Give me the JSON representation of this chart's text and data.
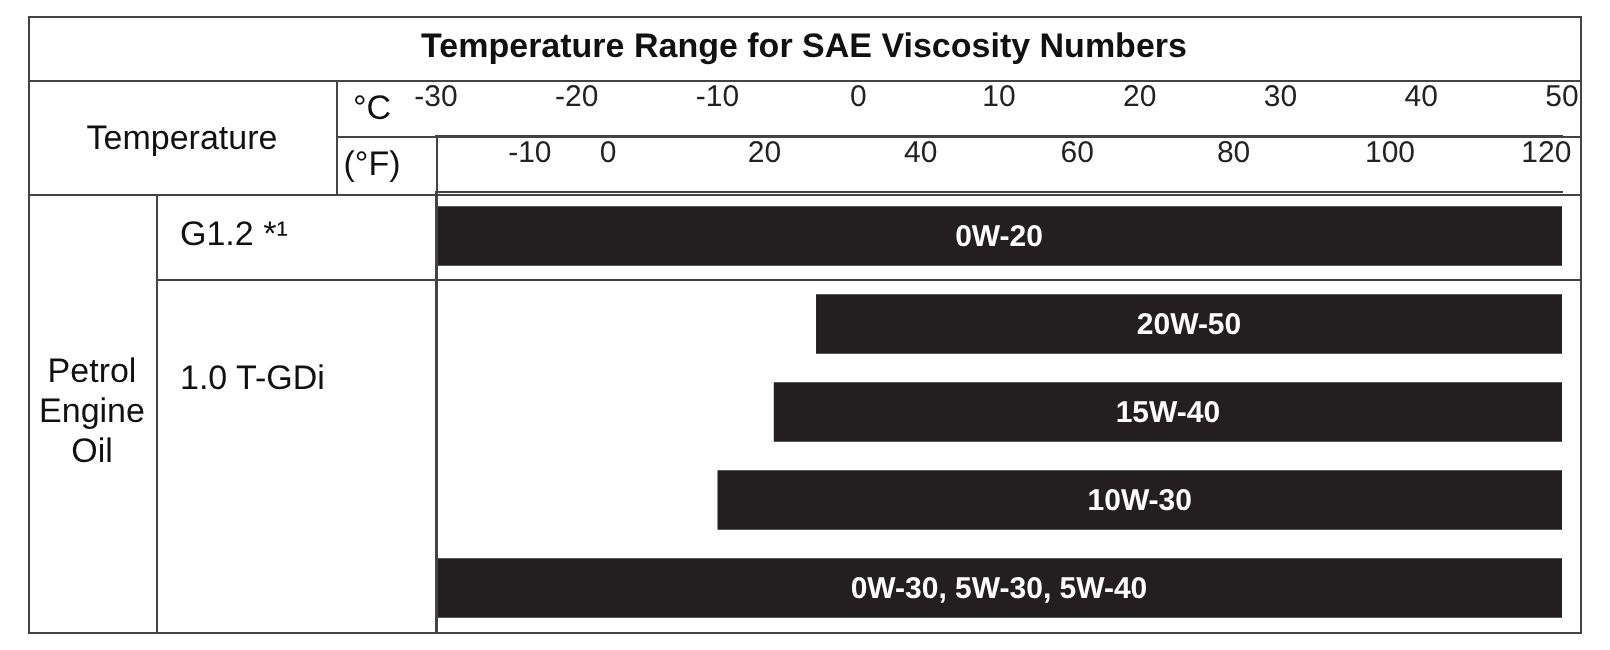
{
  "chart_data": {
    "type": "bar",
    "orientation": "horizontal",
    "title": "Temperature Range for SAE Viscosity Numbers",
    "xlabel": "°C",
    "x2label": "(°F)",
    "annotations": [
      "Temperature",
      "G1.2 *¹",
      "1.0 T-GDi",
      "Petrol Engine Oil"
    ],
    "categories": [
      "0W-20",
      "20W-50",
      "15W-40",
      "10W-30",
      "0W-30, 5W-30, 5W-40"
    ],
    "values": [
      80,
      53,
      56,
      60,
      80
    ],
    "base": [
      -30,
      -3,
      -6,
      -10,
      -30
    ],
    "color": "#231f20",
    "xlim": [
      -30,
      50
    ],
    "xticks": [
      -30,
      -20,
      -10,
      0,
      10,
      20,
      30,
      40,
      50
    ],
    "x2lim": [
      -22,
      122
    ],
    "x2ticks": [
      -10,
      0,
      20,
      40,
      60,
      80,
      100,
      120
    ],
    "grid": false,
    "legend": false
  }
}
